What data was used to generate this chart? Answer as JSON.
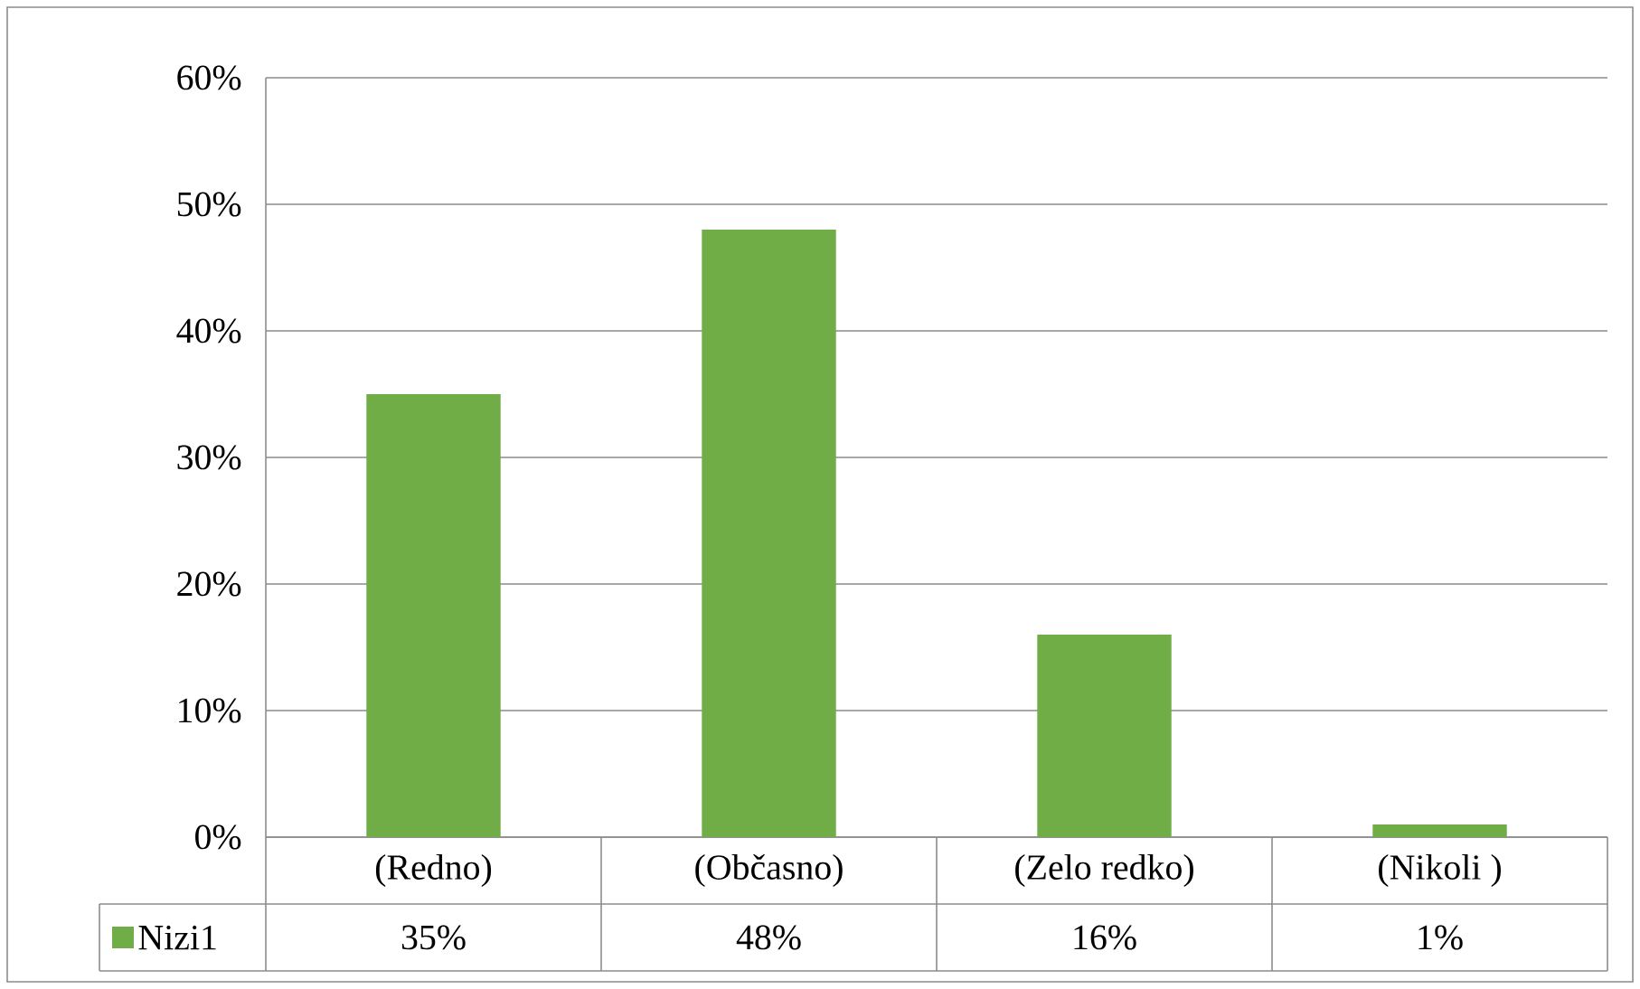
{
  "chart_data": {
    "type": "bar",
    "categories": [
      "(Redno)",
      "(Občasno)",
      "(Zelo redko)",
      "(Nikoli )"
    ],
    "series": [
      {
        "name": "Nizi1",
        "color": "#70ad47",
        "values": [
          35,
          48,
          16,
          1
        ],
        "value_labels": [
          "35%",
          "48%",
          "16%",
          "1%"
        ]
      }
    ],
    "ylim": [
      0,
      60
    ],
    "yticks": [
      {
        "value": 0,
        "label": "0%"
      },
      {
        "value": 10,
        "label": "10%"
      },
      {
        "value": 20,
        "label": "20%"
      },
      {
        "value": 30,
        "label": "30%"
      },
      {
        "value": 40,
        "label": "40%"
      },
      {
        "value": 50,
        "label": "50%"
      },
      {
        "value": 60,
        "label": "60%"
      }
    ],
    "grid": "y",
    "legend": "bottom"
  }
}
